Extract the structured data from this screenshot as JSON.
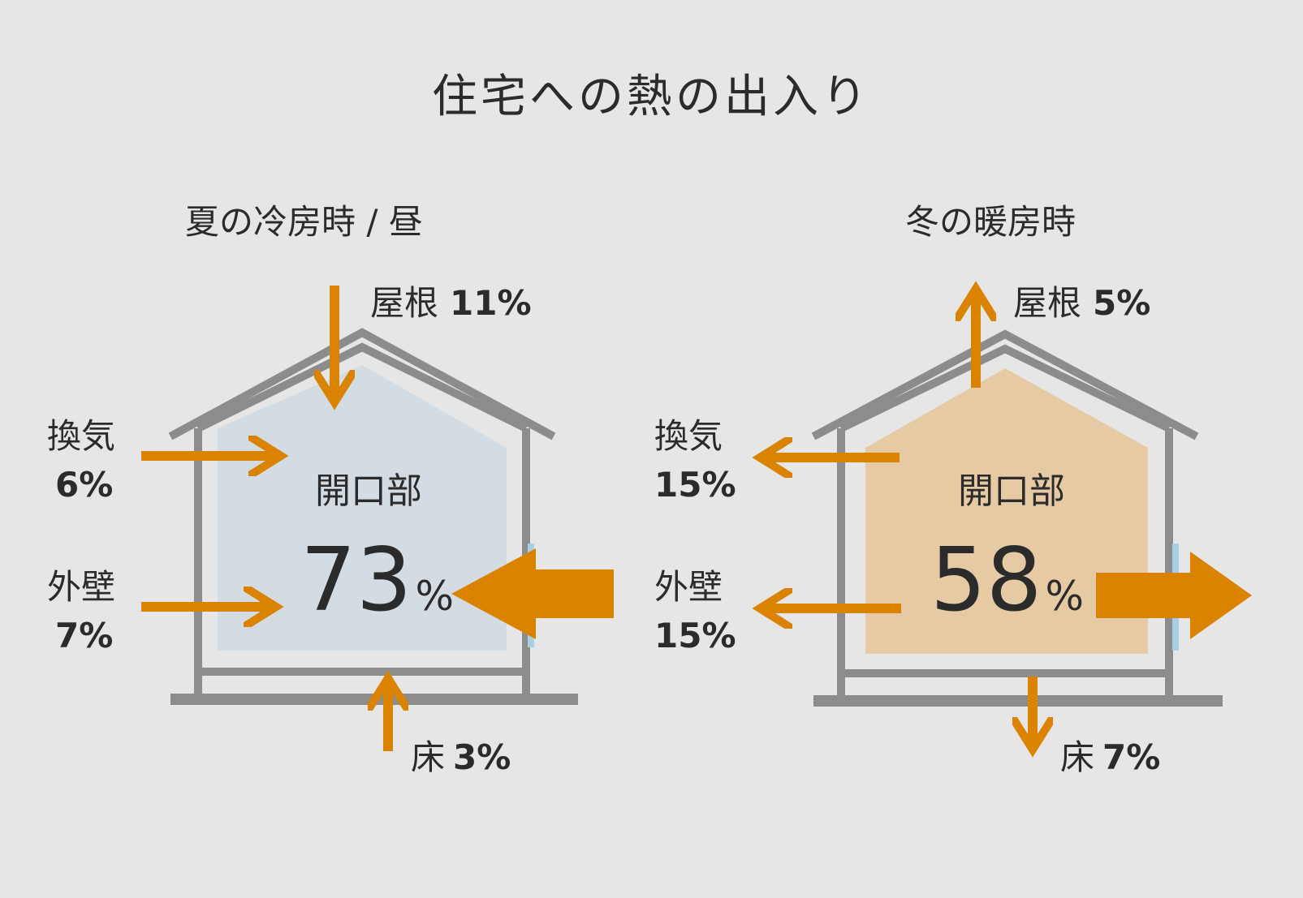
{
  "title": "住宅への熱の出入り",
  "colors": {
    "background": "#e6e6e6",
    "house_frame": "#8c8c8c",
    "arrow": "#d98300",
    "summer_interior": "#d3dce3",
    "winter_interior": "#e5caa3",
    "window": "#a9d0e2",
    "text": "#2b2b2b"
  },
  "summer": {
    "heading": "夏の冷房時 / 昼",
    "roof": {
      "label": "屋根",
      "value": "11%",
      "direction": "in"
    },
    "ventilation": {
      "label": "換気",
      "value": "6%",
      "direction": "in"
    },
    "outer_wall": {
      "label": "外壁",
      "value": "7%",
      "direction": "in"
    },
    "floor": {
      "label": "床",
      "value": "3%",
      "direction": "in"
    },
    "opening": {
      "label": "開口部",
      "value": "73",
      "unit": "%",
      "direction": "in"
    }
  },
  "winter": {
    "heading": "冬の暖房時",
    "roof": {
      "label": "屋根",
      "value": "5%",
      "direction": "out"
    },
    "ventilation": {
      "label": "換気",
      "value": "15%",
      "direction": "out"
    },
    "outer_wall": {
      "label": "外壁",
      "value": "15%",
      "direction": "out"
    },
    "floor": {
      "label": "床",
      "value": "7%",
      "direction": "out"
    },
    "opening": {
      "label": "開口部",
      "value": "58",
      "unit": "%",
      "direction": "out"
    }
  }
}
